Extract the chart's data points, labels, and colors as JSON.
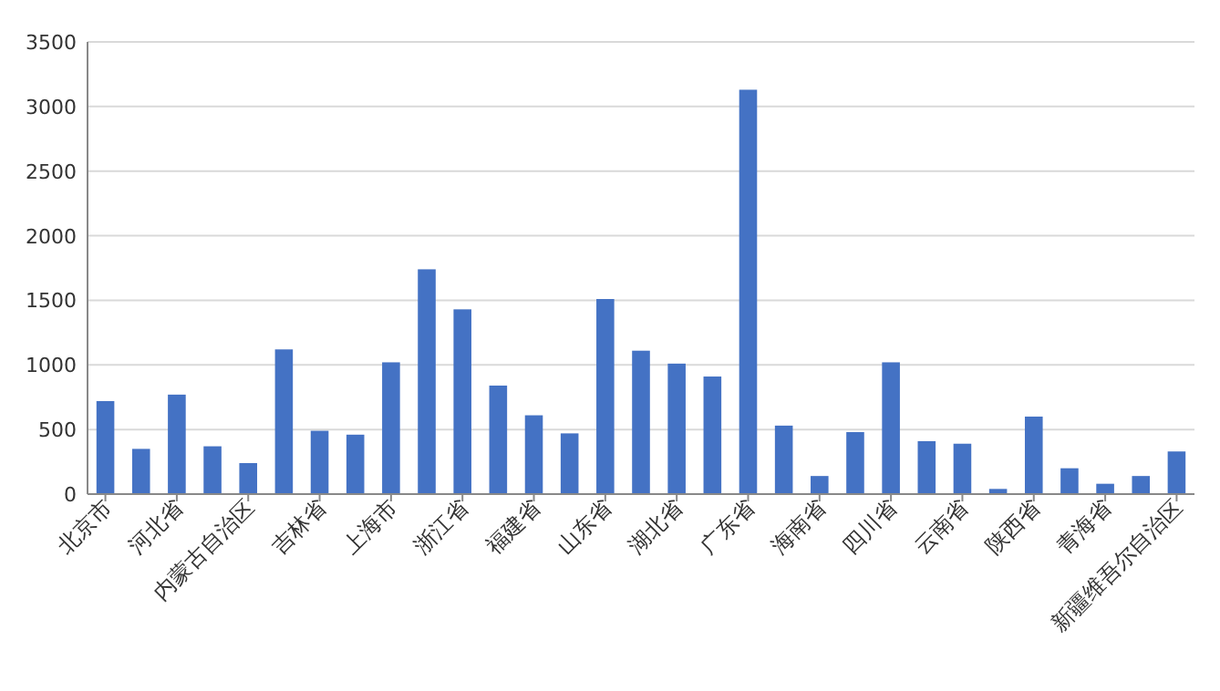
{
  "chart_data": {
    "type": "bar",
    "categories": [
      "北京市",
      null,
      "河北省",
      null,
      "内蒙古自治区",
      null,
      "吉林省",
      null,
      "上海市",
      null,
      "浙江省",
      null,
      "福建省",
      null,
      "山东省",
      null,
      "湖北省",
      null,
      "广东省",
      null,
      "海南省",
      null,
      "四川省",
      null,
      "云南省",
      null,
      "陕西省",
      null,
      "青海省",
      null,
      "新疆维吾尔自治区"
    ],
    "values": [
      720,
      350,
      770,
      370,
      240,
      1120,
      490,
      460,
      1020,
      1740,
      1430,
      840,
      610,
      470,
      1510,
      1110,
      1010,
      910,
      3130,
      530,
      140,
      480,
      1020,
      410,
      390,
      40,
      600,
      200,
      80,
      140,
      330
    ],
    "color": "#4472c4",
    "ylim": [
      0,
      3500
    ],
    "yticks": [
      0,
      500,
      1000,
      1500,
      2000,
      2500,
      3000,
      3500
    ],
    "grid": "y"
  }
}
